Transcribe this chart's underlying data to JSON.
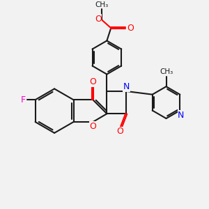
{
  "bg_color": "#f2f2f2",
  "bond_color": "#1a1a1a",
  "o_color": "#ff0000",
  "n_color": "#0000ff",
  "f_color": "#ff00cc",
  "line_width": 1.5,
  "figsize": [
    3.0,
    3.0
  ],
  "dpi": 100,
  "xlim": [
    0,
    10
  ],
  "ylim": [
    0,
    10
  ]
}
